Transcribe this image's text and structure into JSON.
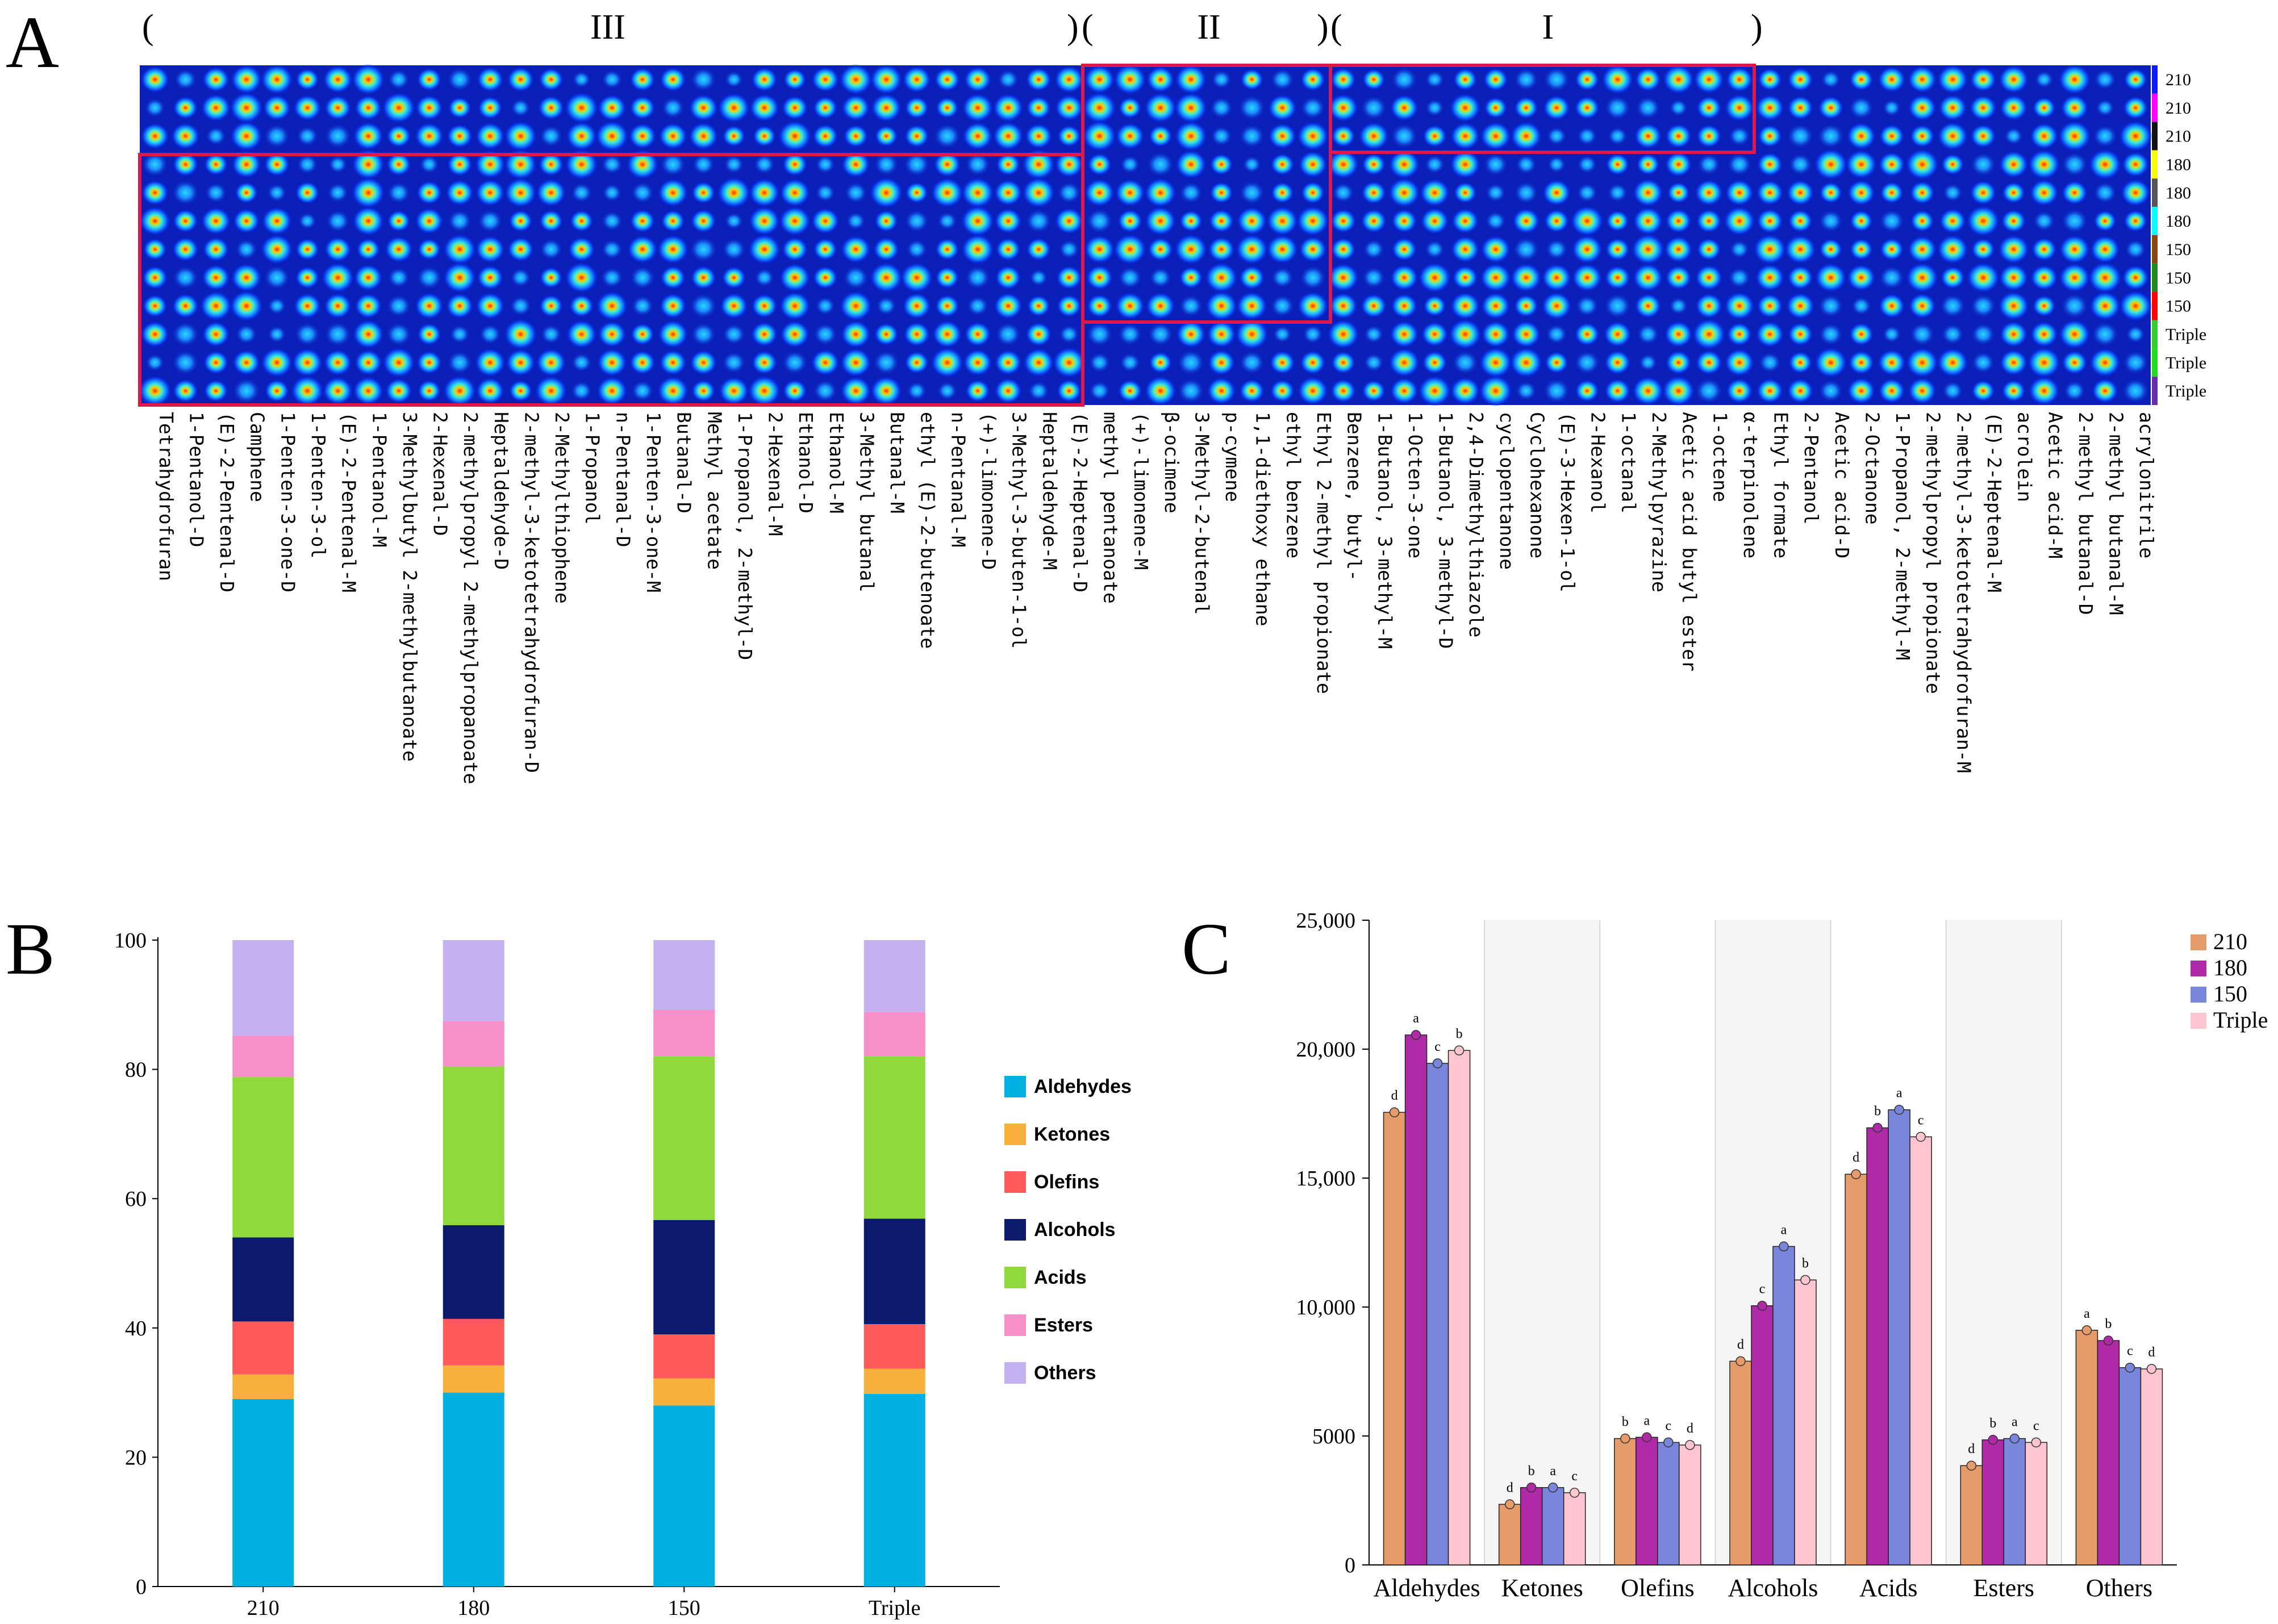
{
  "panels": {
    "a": "A",
    "b": "B",
    "c": "C"
  },
  "heatmap": {
    "regions": [
      {
        "id": "III",
        "open": "(",
        "label": "III",
        "close": ")"
      },
      {
        "id": "II",
        "open": "(",
        "label": "II",
        "close": ")"
      },
      {
        "id": "I",
        "open": "(",
        "label": "I",
        "close": ")"
      }
    ],
    "row_labels": [
      "210",
      "210",
      "210",
      "180",
      "180",
      "180",
      "150",
      "150",
      "150",
      "Triple",
      "Triple",
      "Triple"
    ],
    "row_colors": [
      "#0b1bff",
      "#ff00ff",
      "#111111",
      "#ffff00",
      "#555555",
      "#00ffff",
      "#8b4513",
      "#1e8b22",
      "#ff0000",
      "#33cc33",
      "#22dd22",
      "#6a2ca8"
    ],
    "compounds": [
      "Tetrahydrofuran",
      "1-Pentanol-D",
      "(E)-2-Pentenal-D",
      "Camphene",
      "1-Penten-3-one-D",
      "1-Penten-3-ol",
      "(E)-2-Pentenal-M",
      "1-Pentanol-M",
      "3-Methylbutyl 2-methylbutanoate",
      "2-Hexenal-D",
      "2-methylpropyl 2-methylpropanoate",
      "Heptaldehyde-D",
      "2-methyl-3-ketotetrahydrofuran-D",
      "2-Methylthiophene",
      "1-Propanol",
      "n-Pentanal-D",
      "1-Penten-3-one-M",
      "Butanal-D",
      "Methyl acetate",
      "1-Propanol, 2-methyl-D",
      "2-Hexenal-M",
      "Ethanol-D",
      "Ethanol-M",
      "3-Methyl butanal",
      "Butanal-M",
      "ethyl (E)-2-butenoate",
      "n-Pentanal-M",
      "(+)-limonene-D",
      "3-Methyl-3-buten-1-ol",
      "Heptaldehyde-M",
      "(E)-2-Heptenal-D",
      "methyl pentanoate",
      "(+)-limonene-M",
      "β-ocimene",
      "3-Methyl-2-butenal",
      "p-cymene",
      "1,1-diethoxy ethane",
      "ethyl benzene",
      "Ethyl 2-methyl propionate",
      "Benzene, butyl-",
      "1-Butanol, 3-methyl-M",
      "1-Octen-3-one",
      "1-Butanol, 3-methyl-D",
      "2,4-Dimethylthiazole",
      "cyclopentanone",
      "Cyclohexanone",
      "(E)-3-Hexen-1-ol",
      "2-Hexanol",
      "1-octanal",
      "2-Methylpyrazine",
      "Acetic acid butyl ester",
      "1-octene",
      "α-terpinolene",
      "Ethyl formate",
      "2-Pentanol",
      "Acetic acid-D",
      "2-Octanone",
      "1-Propanol, 2-methyl-M",
      "2-methylpropyl propionate",
      "2-methyl-3-ketotetrahydrofuran-M",
      "(E)-2-Heptenal-M",
      "acrolein",
      "Acetic acid-M",
      "2-methyl butanal-D",
      "2-methyl butanal-M",
      "acrylonitrile"
    ]
  },
  "chart_data": [
    {
      "type": "heatmap",
      "title": "",
      "rows": [
        "210",
        "210",
        "210",
        "180",
        "180",
        "180",
        "150",
        "150",
        "150",
        "Triple",
        "Triple",
        "Triple"
      ],
      "regions": [
        {
          "name": "III",
          "rows": "180-Triple",
          "columns": "Tetrahydrofuran to (E)-2-Heptenal-D"
        },
        {
          "name": "II",
          "rows": "210-150",
          "columns": "methyl pentanoate to Ethyl 2-methyl propionate"
        },
        {
          "name": "I",
          "rows": "210",
          "columns": "Benzene, butyl- to α-terpinolene"
        }
      ]
    },
    {
      "type": "bar",
      "stacked": true,
      "categories": [
        "210",
        "180",
        "150",
        "Triple"
      ],
      "series": [
        {
          "name": "Aldehydes",
          "color": "#00b0e0",
          "values": [
            29.0,
            30.0,
            28.0,
            29.8
          ]
        },
        {
          "name": "Ketones",
          "color": "#f7b03a",
          "values": [
            3.8,
            4.2,
            4.2,
            3.9
          ]
        },
        {
          "name": "Olefins",
          "color": "#ff5a5a",
          "values": [
            8.2,
            7.2,
            6.8,
            6.9
          ]
        },
        {
          "name": "Alcohols",
          "color": "#0b1a6b",
          "values": [
            13.0,
            14.5,
            17.7,
            16.3
          ]
        },
        {
          "name": "Acids",
          "color": "#8fd93d",
          "values": [
            24.8,
            24.6,
            25.3,
            25.1
          ]
        },
        {
          "name": "Esters",
          "color": "#f78fc8",
          "values": [
            6.4,
            7.0,
            7.2,
            6.9
          ]
        },
        {
          "name": "Others",
          "color": "#c4b1f2",
          "values": [
            14.8,
            12.5,
            10.8,
            11.1
          ]
        }
      ],
      "ylim": [
        0,
        100
      ],
      "yticks": [
        0,
        20,
        40,
        60,
        80,
        100
      ],
      "xlabel": "",
      "ylabel": "",
      "legend": "right"
    },
    {
      "type": "bar",
      "categories": [
        "Aldehydes",
        "Ketones",
        "Olefins",
        "Alcohols",
        "Acids",
        "Esters",
        "Others"
      ],
      "series": [
        {
          "name": "210",
          "color": "#e59b6a",
          "values": [
            17550,
            2350,
            4900,
            7900,
            15150,
            3850,
            9100
          ],
          "letters": [
            "d",
            "d",
            "b",
            "d",
            "d",
            "d",
            "a"
          ]
        },
        {
          "name": "180",
          "color": "#b02aa8",
          "values": [
            20550,
            3000,
            4950,
            10050,
            16950,
            4850,
            8700
          ],
          "letters": [
            "a",
            "b",
            "a",
            "c",
            "b",
            "b",
            "b"
          ]
        },
        {
          "name": "150",
          "color": "#7a86dc",
          "values": [
            19450,
            3000,
            4750,
            12350,
            17650,
            4900,
            7650
          ],
          "letters": [
            "c",
            "a",
            "c",
            "a",
            "a",
            "a",
            "c"
          ]
        },
        {
          "name": "Triple",
          "color": "#ffc6cf",
          "values": [
            19950,
            2800,
            4650,
            11050,
            16600,
            4750,
            7600
          ],
          "letters": [
            "b",
            "c",
            "d",
            "b",
            "c",
            "c",
            "d"
          ]
        }
      ],
      "ylim": [
        0,
        25000
      ],
      "yticks": [
        0,
        5000,
        10000,
        15000,
        20000,
        25000
      ],
      "ytick_labels": [
        "0",
        "5000",
        "10,000",
        "15,000",
        "20,000",
        "25,000"
      ],
      "xlabel": "",
      "ylabel": "",
      "legend": "top-right"
    }
  ]
}
